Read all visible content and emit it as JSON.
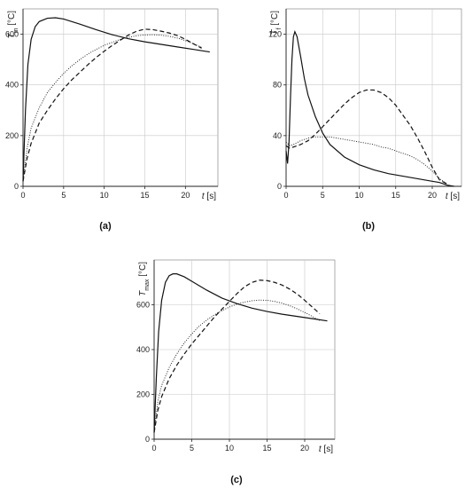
{
  "chart_data": [
    {
      "panel_label": "(a)",
      "type": "line",
      "ylabel_main": "T",
      "ylabel_sub": "m",
      "ylabel_unit": " [°C]",
      "xlabel_main": "t",
      "xlabel_unit": " [s]",
      "xlim": [
        0,
        24
      ],
      "ylim": [
        0,
        700
      ],
      "xticks": [
        0,
        5,
        10,
        15,
        20
      ],
      "yticks": [
        0,
        200,
        400,
        600
      ],
      "grid": true,
      "series": [
        {
          "style": "solid",
          "x": [
            0,
            0.3,
            0.6,
            1.0,
            1.5,
            2.0,
            3.0,
            4.0,
            5.0,
            7.0,
            9.0,
            11.0,
            13.0,
            15.0,
            17.0,
            19.0,
            21.0,
            23.0
          ],
          "y": [
            20,
            300,
            480,
            580,
            630,
            650,
            663,
            665,
            660,
            640,
            618,
            598,
            582,
            570,
            560,
            550,
            540,
            530
          ]
        },
        {
          "style": "dashed",
          "x": [
            0,
            0.5,
            1.0,
            2.0,
            3.0,
            4.0,
            5.0,
            6.0,
            7.0,
            8.0,
            9.0,
            10.0,
            11.0,
            12.0,
            13.0,
            14.0,
            15.0,
            16.0,
            17.0,
            18.0,
            19.0,
            20.0,
            21.0,
            22.0
          ],
          "y": [
            20,
            110,
            170,
            250,
            300,
            345,
            385,
            420,
            450,
            480,
            508,
            533,
            556,
            577,
            597,
            612,
            620,
            618,
            612,
            605,
            595,
            580,
            562,
            545
          ]
        },
        {
          "style": "dotted",
          "x": [
            0,
            0.5,
            1.0,
            2.0,
            3.0,
            4.0,
            5.0,
            6.0,
            7.0,
            8.0,
            9.0,
            10.0,
            11.0,
            12.0,
            13.0,
            14.0,
            15.0,
            16.0,
            17.0,
            18.0,
            19.0,
            20.0,
            21.0,
            22.0
          ],
          "y": [
            20,
            150,
            230,
            310,
            370,
            410,
            445,
            475,
            500,
            522,
            540,
            556,
            568,
            580,
            588,
            594,
            597,
            598,
            596,
            592,
            585,
            575,
            562,
            548
          ]
        }
      ]
    },
    {
      "panel_label": "(b)",
      "type": "line",
      "ylabel_main": "T",
      "ylabel_sub": "f",
      "ylabel_unit": " [°C]",
      "xlabel_main": "t",
      "xlabel_unit": " [s]",
      "xlim": [
        0,
        24
      ],
      "ylim": [
        0,
        140
      ],
      "xticks": [
        0,
        5,
        10,
        15,
        20
      ],
      "yticks": [
        0,
        40,
        80,
        120
      ],
      "grid": true,
      "series": [
        {
          "style": "solid",
          "x": [
            0,
            0.2,
            0.4,
            0.6,
            0.8,
            1.0,
            1.2,
            1.5,
            2.0,
            2.5,
            3.0,
            4.0,
            5.0,
            6.0,
            8.0,
            10.0,
            12.0,
            14.0,
            16.0,
            18.0,
            20.0,
            21.0,
            22.0,
            23.0
          ],
          "y": [
            28,
            18,
            35,
            70,
            100,
            118,
            122,
            118,
            102,
            85,
            72,
            55,
            42,
            33,
            23,
            17,
            13,
            10,
            8,
            6,
            4,
            3,
            1,
            0
          ]
        },
        {
          "style": "dashed",
          "x": [
            0,
            0.5,
            1.0,
            2.0,
            3.0,
            4.0,
            5.0,
            6.0,
            7.0,
            8.0,
            9.0,
            10.0,
            11.0,
            12.0,
            13.0,
            14.0,
            15.0,
            16.0,
            17.0,
            18.0,
            19.0,
            20.0,
            21.0,
            22.0
          ],
          "y": [
            32,
            30,
            31,
            33,
            36,
            41,
            47,
            53,
            59,
            65,
            70,
            74,
            76,
            76,
            74,
            70,
            64,
            56,
            48,
            38,
            27,
            15,
            5,
            2
          ]
        },
        {
          "style": "dotted",
          "x": [
            0,
            0.5,
            1.0,
            2.0,
            3.0,
            4.0,
            5.0,
            6.0,
            7.0,
            8.0,
            9.0,
            10.0,
            11.0,
            12.0,
            13.0,
            14.0,
            15.0,
            16.0,
            17.0,
            18.0,
            19.0,
            20.0,
            21.0,
            22.0
          ],
          "y": [
            35,
            32,
            33,
            36,
            38,
            39,
            39,
            39,
            38,
            37,
            36,
            35,
            34,
            33,
            31,
            30,
            28,
            26,
            24,
            21,
            17,
            12,
            6,
            2
          ]
        }
      ]
    },
    {
      "panel_label": "(c)",
      "type": "line",
      "ylabel_main": "T",
      "ylabel_sub": "max",
      "ylabel_unit": " [°C]",
      "xlabel_main": "t",
      "xlabel_unit": " [s]",
      "xlim": [
        0,
        24
      ],
      "ylim": [
        0,
        800
      ],
      "xticks": [
        0,
        5,
        10,
        15,
        20
      ],
      "yticks": [
        0,
        200,
        400,
        600
      ],
      "grid": true,
      "series": [
        {
          "style": "solid",
          "x": [
            0,
            0.3,
            0.6,
            1.0,
            1.5,
            2.0,
            2.5,
            3.0,
            4.0,
            5.0,
            7.0,
            9.0,
            11.0,
            13.0,
            15.0,
            17.0,
            19.0,
            21.0,
            23.0
          ],
          "y": [
            30,
            280,
            480,
            620,
            700,
            730,
            738,
            738,
            725,
            705,
            665,
            630,
            605,
            585,
            570,
            558,
            548,
            538,
            528
          ]
        },
        {
          "style": "dashed",
          "x": [
            0,
            0.5,
            1.0,
            2.0,
            3.0,
            4.0,
            5.0,
            6.0,
            7.0,
            8.0,
            9.0,
            10.0,
            11.0,
            12.0,
            13.0,
            14.0,
            15.0,
            16.0,
            17.0,
            18.0,
            19.0,
            20.0,
            21.0,
            22.0
          ],
          "y": [
            30,
            130,
            190,
            270,
            330,
            380,
            425,
            465,
            505,
            545,
            580,
            615,
            650,
            680,
            700,
            710,
            708,
            700,
            688,
            670,
            648,
            620,
            590,
            560
          ]
        },
        {
          "style": "dotted",
          "x": [
            0,
            0.5,
            1.0,
            2.0,
            3.0,
            4.0,
            5.0,
            6.0,
            7.0,
            8.0,
            9.0,
            10.0,
            11.0,
            12.0,
            13.0,
            14.0,
            15.0,
            16.0,
            17.0,
            18.0,
            19.0,
            20.0,
            21.0,
            22.0
          ],
          "y": [
            30,
            170,
            240,
            320,
            380,
            430,
            470,
            505,
            532,
            555,
            574,
            590,
            603,
            612,
            618,
            621,
            620,
            615,
            607,
            596,
            582,
            566,
            548,
            530
          ]
        }
      ]
    }
  ]
}
